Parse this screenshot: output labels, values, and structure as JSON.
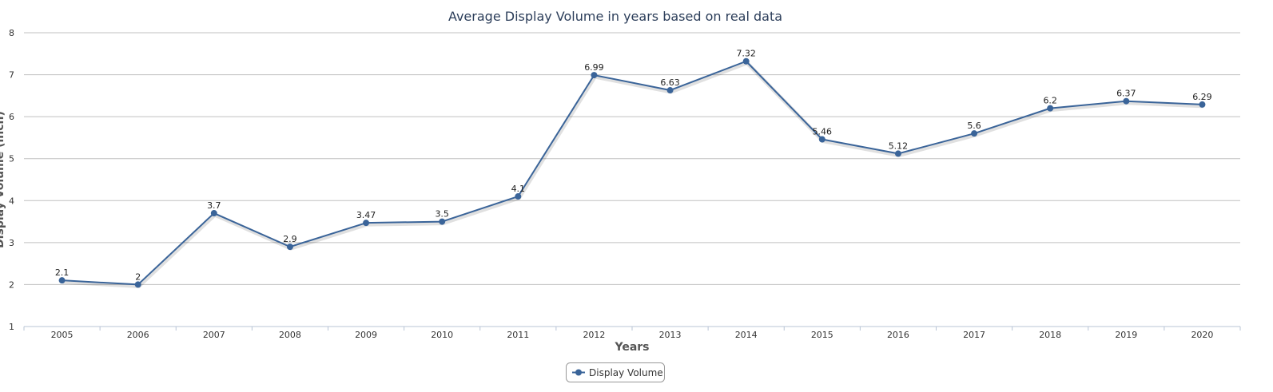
{
  "chart_data": {
    "type": "line",
    "title": "Average Display Volume in years based on real data",
    "xlabel": "Years",
    "ylabel": "Display Volume (inch)",
    "categories": [
      "2005",
      "2006",
      "2007",
      "2008",
      "2009",
      "2010",
      "2011",
      "2012",
      "2013",
      "2014",
      "2015",
      "2016",
      "2017",
      "2018",
      "2019",
      "2020"
    ],
    "series": [
      {
        "name": "Display Volume",
        "values": [
          2.1,
          2,
          3.7,
          2.9,
          3.47,
          3.5,
          4.1,
          6.99,
          6.63,
          7.32,
          5.46,
          5.12,
          5.6,
          6.2,
          6.37,
          6.29
        ],
        "color": "#3a6499"
      }
    ],
    "ylim": [
      1,
      8
    ],
    "yticks": [
      1,
      2,
      3,
      4,
      5,
      6,
      7,
      8
    ],
    "grid": true,
    "legend": "bottom-center",
    "data_labels": true
  }
}
